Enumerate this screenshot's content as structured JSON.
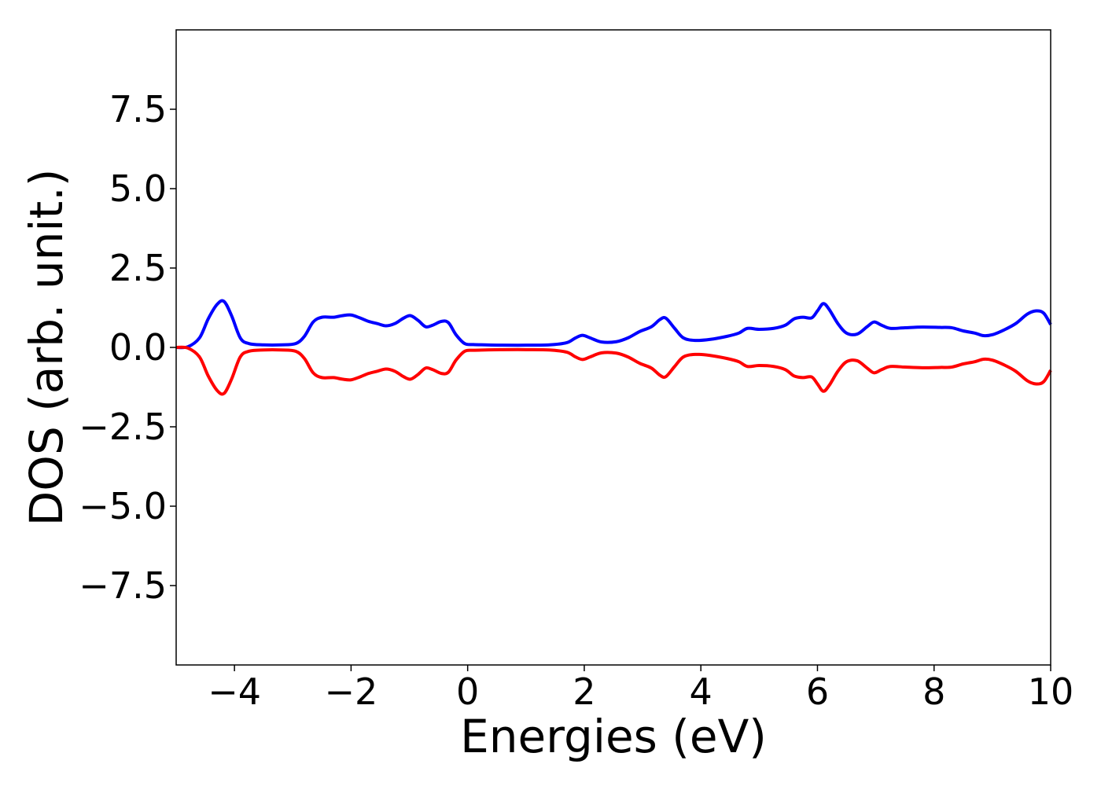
{
  "chart_data": {
    "type": "line",
    "title": "",
    "xlabel": "Energies (eV)",
    "ylabel": "DOS (arb. unit.)",
    "xlim": [
      -5,
      10
    ],
    "ylim": [
      -10,
      10
    ],
    "grid": false,
    "x_ticks": [
      -4,
      -2,
      0,
      2,
      4,
      6,
      8,
      10
    ],
    "x_tick_labels": [
      "−4",
      "−2",
      "0",
      "2",
      "4",
      "6",
      "8",
      "10"
    ],
    "y_ticks": [
      7.5,
      5.0,
      2.5,
      0.0,
      -2.5,
      -5.0,
      -7.5
    ],
    "y_tick_labels": [
      "7.5",
      "5.0",
      "2.5",
      "0.0",
      "−2.5",
      "−5.0",
      "−7.5"
    ],
    "series": [
      {
        "color": "#0000ff",
        "x": [
          -5.0,
          -4.8,
          -4.6,
          -4.45,
          -4.3,
          -4.18,
          -4.05,
          -3.9,
          -3.75,
          -3.5,
          -3.2,
          -2.95,
          -2.8,
          -2.65,
          -2.5,
          -2.3,
          -2.15,
          -2.0,
          -1.85,
          -1.7,
          -1.55,
          -1.4,
          -1.25,
          -1.1,
          -0.98,
          -0.85,
          -0.72,
          -0.6,
          -0.45,
          -0.33,
          -0.2,
          -0.05,
          0.1,
          0.3,
          0.6,
          1.0,
          1.4,
          1.7,
          1.85,
          1.97,
          2.1,
          2.3,
          2.55,
          2.75,
          2.95,
          3.15,
          3.3,
          3.4,
          3.55,
          3.7,
          3.9,
          4.15,
          4.45,
          4.65,
          4.8,
          5.0,
          5.25,
          5.45,
          5.6,
          5.75,
          5.9,
          6.0,
          6.1,
          6.2,
          6.35,
          6.5,
          6.68,
          6.85,
          6.97,
          7.1,
          7.25,
          7.5,
          7.8,
          8.1,
          8.3,
          8.5,
          8.7,
          8.85,
          9.0,
          9.2,
          9.4,
          9.6,
          9.75,
          9.88,
          10.0
        ],
        "y": [
          0.0,
          0.02,
          0.3,
          0.9,
          1.35,
          1.45,
          1.0,
          0.3,
          0.12,
          0.08,
          0.08,
          0.12,
          0.35,
          0.8,
          0.95,
          0.95,
          1.0,
          1.02,
          0.93,
          0.82,
          0.75,
          0.68,
          0.75,
          0.92,
          1.0,
          0.85,
          0.65,
          0.7,
          0.82,
          0.78,
          0.4,
          0.12,
          0.09,
          0.08,
          0.07,
          0.07,
          0.08,
          0.15,
          0.3,
          0.38,
          0.3,
          0.17,
          0.18,
          0.3,
          0.5,
          0.65,
          0.88,
          0.92,
          0.6,
          0.3,
          0.22,
          0.25,
          0.35,
          0.45,
          0.6,
          0.57,
          0.6,
          0.7,
          0.9,
          0.95,
          0.93,
          1.15,
          1.38,
          1.2,
          0.75,
          0.45,
          0.42,
          0.65,
          0.8,
          0.7,
          0.6,
          0.62,
          0.64,
          0.63,
          0.62,
          0.52,
          0.45,
          0.37,
          0.4,
          0.55,
          0.75,
          1.05,
          1.15,
          1.08,
          0.72
        ]
      },
      {
        "color": "#ff0000",
        "x": [
          -5.0,
          -4.8,
          -4.6,
          -4.45,
          -4.3,
          -4.18,
          -4.05,
          -3.9,
          -3.75,
          -3.5,
          -3.2,
          -2.95,
          -2.8,
          -2.65,
          -2.5,
          -2.3,
          -2.15,
          -2.0,
          -1.85,
          -1.7,
          -1.55,
          -1.4,
          -1.25,
          -1.1,
          -0.98,
          -0.85,
          -0.72,
          -0.6,
          -0.45,
          -0.33,
          -0.2,
          -0.05,
          0.1,
          0.3,
          0.6,
          1.0,
          1.4,
          1.7,
          1.85,
          1.97,
          2.1,
          2.3,
          2.55,
          2.75,
          2.95,
          3.15,
          3.3,
          3.4,
          3.55,
          3.7,
          3.9,
          4.15,
          4.45,
          4.65,
          4.8,
          5.0,
          5.25,
          5.45,
          5.6,
          5.75,
          5.9,
          6.0,
          6.1,
          6.2,
          6.35,
          6.5,
          6.68,
          6.85,
          6.97,
          7.1,
          7.25,
          7.5,
          7.8,
          8.1,
          8.3,
          8.5,
          8.7,
          8.85,
          9.0,
          9.2,
          9.4,
          9.6,
          9.75,
          9.88,
          10.0
        ],
        "y": [
          0.0,
          -0.02,
          -0.3,
          -0.9,
          -1.35,
          -1.45,
          -1.0,
          -0.3,
          -0.12,
          -0.08,
          -0.08,
          -0.12,
          -0.35,
          -0.8,
          -0.95,
          -0.95,
          -1.0,
          -1.02,
          -0.93,
          -0.82,
          -0.75,
          -0.68,
          -0.75,
          -0.92,
          -1.0,
          -0.85,
          -0.65,
          -0.7,
          -0.82,
          -0.78,
          -0.4,
          -0.12,
          -0.09,
          -0.08,
          -0.07,
          -0.07,
          -0.08,
          -0.15,
          -0.3,
          -0.38,
          -0.3,
          -0.17,
          -0.18,
          -0.3,
          -0.5,
          -0.65,
          -0.88,
          -0.92,
          -0.6,
          -0.3,
          -0.22,
          -0.25,
          -0.35,
          -0.45,
          -0.6,
          -0.57,
          -0.6,
          -0.7,
          -0.9,
          -0.95,
          -0.93,
          -1.15,
          -1.38,
          -1.2,
          -0.75,
          -0.45,
          -0.42,
          -0.65,
          -0.8,
          -0.7,
          -0.6,
          -0.62,
          -0.64,
          -0.63,
          -0.62,
          -0.52,
          -0.45,
          -0.37,
          -0.4,
          -0.55,
          -0.75,
          -1.05,
          -1.15,
          -1.08,
          -0.72
        ]
      }
    ]
  }
}
